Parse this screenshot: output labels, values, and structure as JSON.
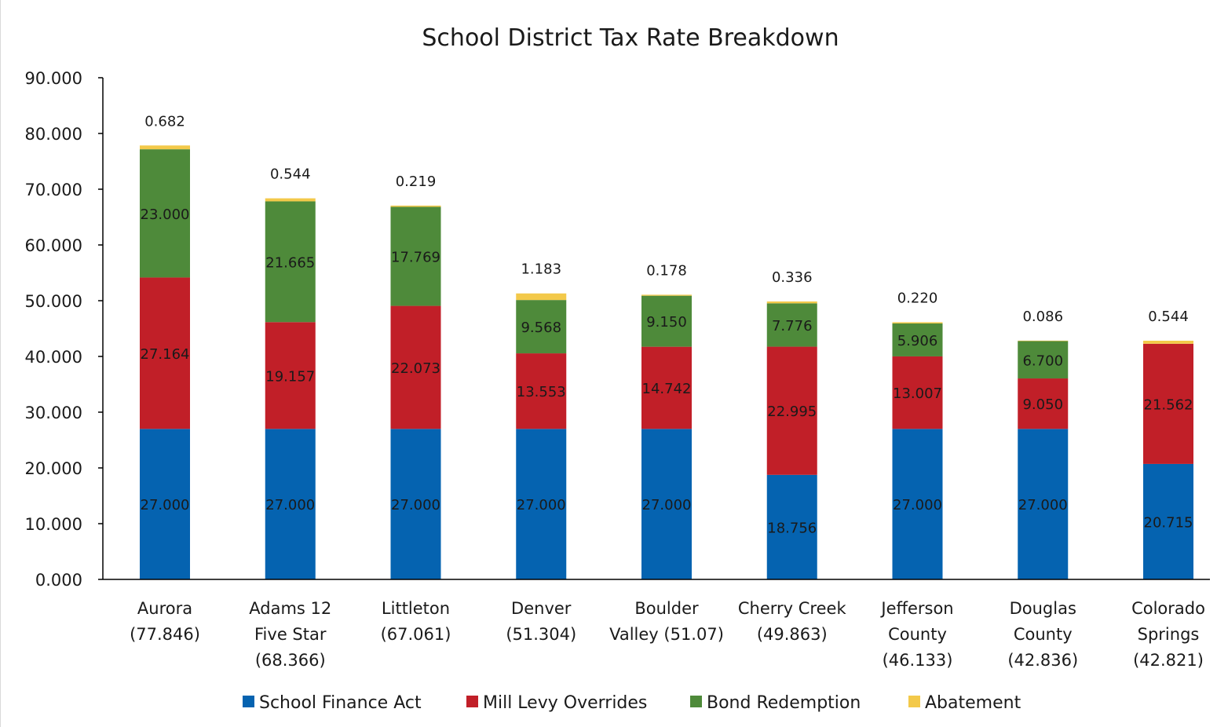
{
  "chart_data": {
    "type": "bar",
    "stacked": true,
    "title": "School District Tax Rate Breakdown",
    "xlabel": "",
    "ylabel": "",
    "ylim": [
      0,
      90
    ],
    "yticks": [
      "0.000",
      "10.000",
      "20.000",
      "30.000",
      "40.000",
      "50.000",
      "60.000",
      "70.000",
      "80.000",
      "90.000"
    ],
    "grid": false,
    "legend_position": "bottom",
    "categories": [
      [
        "Aurora",
        "(77.846)"
      ],
      [
        "Adams 12",
        "Five Star",
        "(68.366)"
      ],
      [
        "Littleton",
        "(67.061)"
      ],
      [
        "Denver",
        "(51.304)"
      ],
      [
        "Boulder",
        "Valley (51.07)"
      ],
      [
        "Cherry Creek",
        "(49.863)"
      ],
      [
        "Jefferson",
        "County",
        "(46.133)"
      ],
      [
        "Douglas",
        "County",
        "(42.836)"
      ],
      [
        "Colorado",
        "Springs",
        "(42.821)"
      ]
    ],
    "series": [
      {
        "name": "School Finance Act",
        "color": "#0563b0",
        "values": [
          27.0,
          27.0,
          27.0,
          27.0,
          27.0,
          18.756,
          27.0,
          27.0,
          20.715
        ],
        "labels": [
          "27.000",
          "27.000",
          "27.000",
          "27.000",
          "27.000",
          "18.756",
          "27.000",
          "27.000",
          "20.715"
        ]
      },
      {
        "name": "Mill Levy Overrides",
        "color": "#c11f28",
        "values": [
          27.164,
          19.157,
          22.073,
          13.553,
          14.742,
          22.995,
          13.007,
          9.05,
          21.562
        ],
        "labels": [
          "27.164",
          "19.157",
          "22.073",
          "13.553",
          "14.742",
          "22.995",
          "13.007",
          "9.050",
          "21.562"
        ]
      },
      {
        "name": "Bond Redemption",
        "color": "#4e8a3a",
        "values": [
          23.0,
          21.665,
          17.769,
          9.568,
          9.15,
          7.776,
          5.906,
          6.7,
          0
        ],
        "labels": [
          "23.000",
          "21.665",
          "17.769",
          "9.568",
          "9.150",
          "7.776",
          "5.906",
          "6.700",
          ""
        ]
      },
      {
        "name": "Abatement",
        "color": "#f3c94a",
        "values": [
          0.682,
          0.544,
          0.219,
          1.183,
          0.178,
          0.336,
          0.22,
          0.086,
          0.544
        ],
        "labels": [
          "0.682",
          "0.544",
          "0.219",
          "1.183",
          "0.178",
          "0.336",
          "0.220",
          "0.086",
          "0.544"
        ]
      }
    ]
  }
}
